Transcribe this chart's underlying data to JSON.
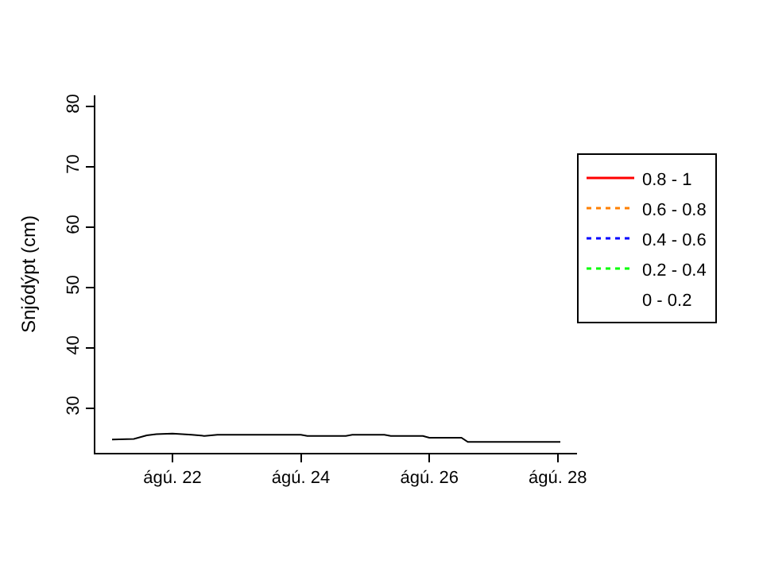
{
  "chart_data": {
    "type": "line",
    "ylabel": "Snjódýpt (cm)",
    "x": [
      21.06,
      21.4,
      21.6,
      21.75,
      22.0,
      22.3,
      22.5,
      22.7,
      24.0,
      24.1,
      24.7,
      24.8,
      25.3,
      25.4,
      25.9,
      26.0,
      26.5,
      26.6,
      28.04
    ],
    "series": [
      {
        "color": "#000000",
        "values": [
          24.8,
          24.9,
          25.5,
          25.7,
          25.8,
          25.6,
          25.4,
          25.6,
          25.6,
          25.4,
          25.4,
          25.6,
          25.6,
          25.4,
          25.4,
          25.1,
          25.1,
          24.4,
          24.4
        ]
      },
      {
        "name": "0.8 - 1",
        "color": "#ff0000",
        "line_style": "solid",
        "values": [
          null,
          null,
          null,
          null,
          null,
          null,
          null,
          null,
          null,
          null,
          null,
          null,
          null,
          null,
          null,
          null,
          null,
          null,
          null
        ]
      },
      {
        "name": "0.6 - 0.8",
        "color": "#ff8000",
        "line_style": "dotted",
        "values": [
          null,
          null,
          null,
          null,
          null,
          null,
          null,
          null,
          null,
          null,
          null,
          null,
          null,
          null,
          null,
          null,
          null,
          null,
          null
        ]
      },
      {
        "name": "0.4 - 0.6",
        "color": "#0000ff",
        "line_style": "dotted",
        "values": [
          null,
          null,
          null,
          null,
          null,
          null,
          null,
          null,
          null,
          null,
          null,
          null,
          null,
          null,
          null,
          null,
          null,
          null,
          null
        ]
      },
      {
        "name": "0.2 - 0.4",
        "color": "#00ff00",
        "line_style": "dotted",
        "values": [
          null,
          null,
          null,
          null,
          null,
          null,
          null,
          null,
          null,
          null,
          null,
          null,
          null,
          null,
          null,
          null,
          null,
          null,
          null
        ]
      },
      {
        "name": "0 - 0.2",
        "values": [
          null,
          null,
          null,
          null,
          null,
          null,
          null,
          null,
          null,
          null,
          null,
          null,
          null,
          null,
          null,
          null,
          null,
          null,
          null
        ]
      }
    ],
    "xlim": [
      20.8,
      28.3
    ],
    "xticks": [
      {
        "value": 22,
        "label": "ágú. 22"
      },
      {
        "value": 24,
        "label": "ágú. 24"
      },
      {
        "value": 26,
        "label": "ágú. 26"
      },
      {
        "value": 28,
        "label": "ágú. 28"
      }
    ],
    "ylim": [
      22.6,
      81.8
    ],
    "yticks": [
      30,
      40,
      50,
      60,
      70,
      80
    ],
    "legend": "right",
    "marker": "none"
  }
}
